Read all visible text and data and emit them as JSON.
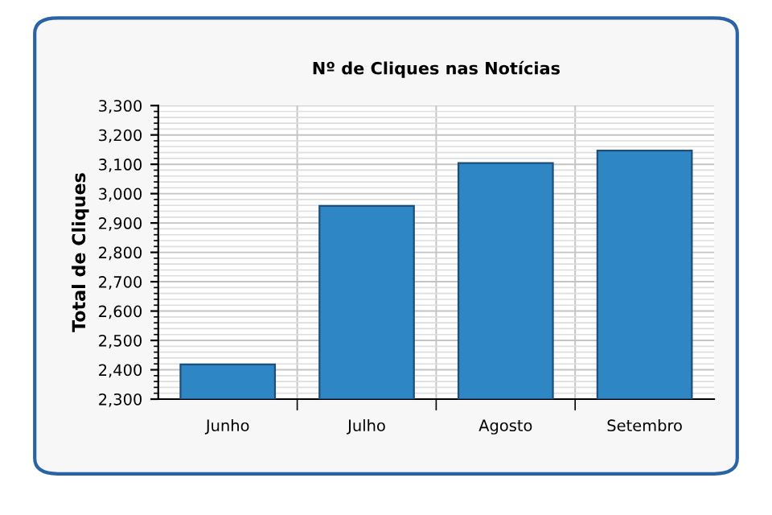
{
  "chart_data": {
    "type": "bar",
    "title": "Nº de Cliques nas Notícias",
    "ylabel": "Total de Cliques",
    "categories": [
      "Junho",
      "Julho",
      "Agosto",
      "Setembro"
    ],
    "values": [
      2418,
      2958,
      3104,
      3147
    ],
    "color": "#2f86c4",
    "ylim": [
      2300,
      3300
    ],
    "yticks": [
      {
        "value": 2300,
        "label": "2,300"
      },
      {
        "value": 2400,
        "label": "2,400"
      },
      {
        "value": 2500,
        "label": "2,500"
      },
      {
        "value": 2600,
        "label": "2,600"
      },
      {
        "value": 2700,
        "label": "2,700"
      },
      {
        "value": 2800,
        "label": "2,800"
      },
      {
        "value": 2900,
        "label": "2,900"
      },
      {
        "value": 3000,
        "label": "3,000"
      },
      {
        "value": 3100,
        "label": "3,100"
      },
      {
        "value": 3200,
        "label": "3,200"
      },
      {
        "value": 3300,
        "label": "3,300"
      }
    ],
    "grid": true
  }
}
